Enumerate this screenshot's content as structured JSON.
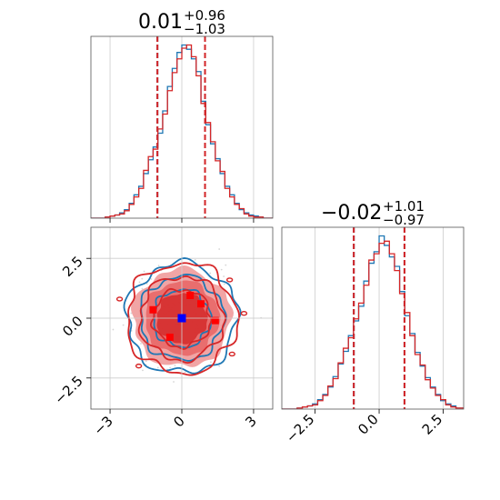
{
  "chart_data": [
    {
      "panel": "marginal-x",
      "type": "histogram",
      "title": {
        "median": "0.01",
        "upper": "+0.96",
        "lower": "−1.03"
      },
      "xlim": [
        -3.8,
        3.8
      ],
      "quantile_lines": [
        -1.02,
        0.97
      ],
      "series": [
        {
          "color": "#1f77b4",
          "bins": [
            -3.8,
            -3.6,
            -3.4,
            -3.2,
            -3.0,
            -2.8,
            -2.6,
            -2.4,
            -2.2,
            -2.0,
            -1.8,
            -1.6,
            -1.4,
            -1.2,
            -1.0,
            -0.8,
            -0.6,
            -0.4,
            -0.2,
            0.0,
            0.2,
            0.4,
            0.6,
            0.8,
            1.0,
            1.2,
            1.4,
            1.6,
            1.8,
            2.0,
            2.2,
            2.4,
            2.6,
            2.8,
            3.0,
            3.2,
            3.4,
            3.6
          ],
          "counts": [
            0,
            0,
            0,
            1,
            2,
            3,
            5,
            8,
            14,
            22,
            30,
            42,
            55,
            67,
            80,
            101,
            124,
            141,
            156,
            163,
            159,
            150,
            138,
            110,
            88,
            70,
            56,
            42,
            30,
            22,
            14,
            8,
            5,
            3,
            2,
            1,
            0,
            0
          ]
        },
        {
          "color": "#d62728",
          "bins": [
            -3.8,
            -3.6,
            -3.4,
            -3.2,
            -3.0,
            -2.8,
            -2.6,
            -2.4,
            -2.2,
            -2.0,
            -1.8,
            -1.6,
            -1.4,
            -1.2,
            -1.0,
            -0.8,
            -0.6,
            -0.4,
            -0.2,
            0.0,
            0.2,
            0.4,
            0.6,
            0.8,
            1.0,
            1.2,
            1.4,
            1.6,
            1.8,
            2.0,
            2.2,
            2.4,
            2.6,
            2.8,
            3.0,
            3.2,
            3.4,
            3.6
          ],
          "counts": [
            0,
            0,
            0,
            1,
            2,
            3,
            4,
            7,
            13,
            20,
            28,
            45,
            58,
            65,
            84,
            98,
            120,
            137,
            150,
            160,
            163,
            152,
            134,
            108,
            90,
            72,
            54,
            44,
            28,
            20,
            13,
            9,
            4,
            2,
            1,
            1,
            0,
            0
          ]
        }
      ]
    },
    {
      "panel": "joint",
      "type": "contour",
      "xlim": [
        -3.8,
        3.8
      ],
      "ylim": [
        -3.8,
        3.8
      ],
      "x_ticks": [
        "−3",
        "0",
        "3"
      ],
      "y_ticks": [
        "2.5",
        "0.0",
        "−2.5"
      ],
      "true_point": {
        "x": 0.0,
        "y": 0.0,
        "color": "#0000ff"
      },
      "red_points": [
        {
          "x": -1.2,
          "y": 0.35
        },
        {
          "x": 0.35,
          "y": 0.95
        },
        {
          "x": 0.8,
          "y": 0.6
        },
        {
          "x": -0.5,
          "y": -0.8
        },
        {
          "x": 1.4,
          "y": -0.1
        }
      ],
      "contour_levels": [
        {
          "r": 2.05,
          "fill": "#f0a0a0"
        },
        {
          "r": 1.55,
          "fill": "#e86a6a"
        },
        {
          "r": 1.05,
          "fill": "#d63030"
        }
      ],
      "series": [
        {
          "color": "#1f77b4"
        },
        {
          "color": "#d62728"
        }
      ]
    },
    {
      "panel": "marginal-y",
      "type": "histogram",
      "title": {
        "median": "−0.02",
        "upper": "+1.01",
        "lower": "−0.97"
      },
      "xlim": [
        -3.8,
        3.3
      ],
      "x_ticks": [
        "−2.5",
        "0.0",
        "2.5"
      ],
      "quantile_lines": [
        -0.99,
        0.99
      ],
      "series": [
        {
          "color": "#1f77b4",
          "bins": [
            -3.8,
            -3.6,
            -3.4,
            -3.2,
            -3.0,
            -2.8,
            -2.6,
            -2.4,
            -2.2,
            -2.0,
            -1.8,
            -1.6,
            -1.4,
            -1.2,
            -1.0,
            -0.8,
            -0.6,
            -0.4,
            -0.2,
            0.0,
            0.2,
            0.4,
            0.6,
            0.8,
            1.0,
            1.2,
            1.4,
            1.6,
            1.8,
            2.0,
            2.2,
            2.4,
            2.6,
            2.8,
            3.0,
            3.2
          ],
          "counts": [
            0,
            0,
            0,
            1,
            2,
            3,
            5,
            9,
            14,
            21,
            31,
            43,
            55,
            70,
            84,
            98,
            122,
            139,
            150,
            165,
            156,
            145,
            136,
            112,
            89,
            72,
            54,
            41,
            30,
            21,
            14,
            8,
            5,
            3,
            1,
            1
          ]
        },
        {
          "color": "#d62728",
          "bins": [
            -3.8,
            -3.6,
            -3.4,
            -3.2,
            -3.0,
            -2.8,
            -2.6,
            -2.4,
            -2.2,
            -2.0,
            -1.8,
            -1.6,
            -1.4,
            -1.2,
            -1.0,
            -0.8,
            -0.6,
            -0.4,
            -0.2,
            0.0,
            0.2,
            0.4,
            0.6,
            0.8,
            1.0,
            1.2,
            1.4,
            1.6,
            1.8,
            2.0,
            2.2,
            2.4,
            2.6,
            2.8,
            3.0,
            3.2
          ],
          "counts": [
            0,
            0,
            0,
            1,
            2,
            3,
            4,
            8,
            13,
            22,
            29,
            44,
            58,
            68,
            86,
            101,
            118,
            142,
            148,
            158,
            160,
            148,
            132,
            110,
            92,
            70,
            52,
            42,
            28,
            20,
            13,
            9,
            4,
            2,
            1,
            1
          ]
        }
      ]
    }
  ]
}
